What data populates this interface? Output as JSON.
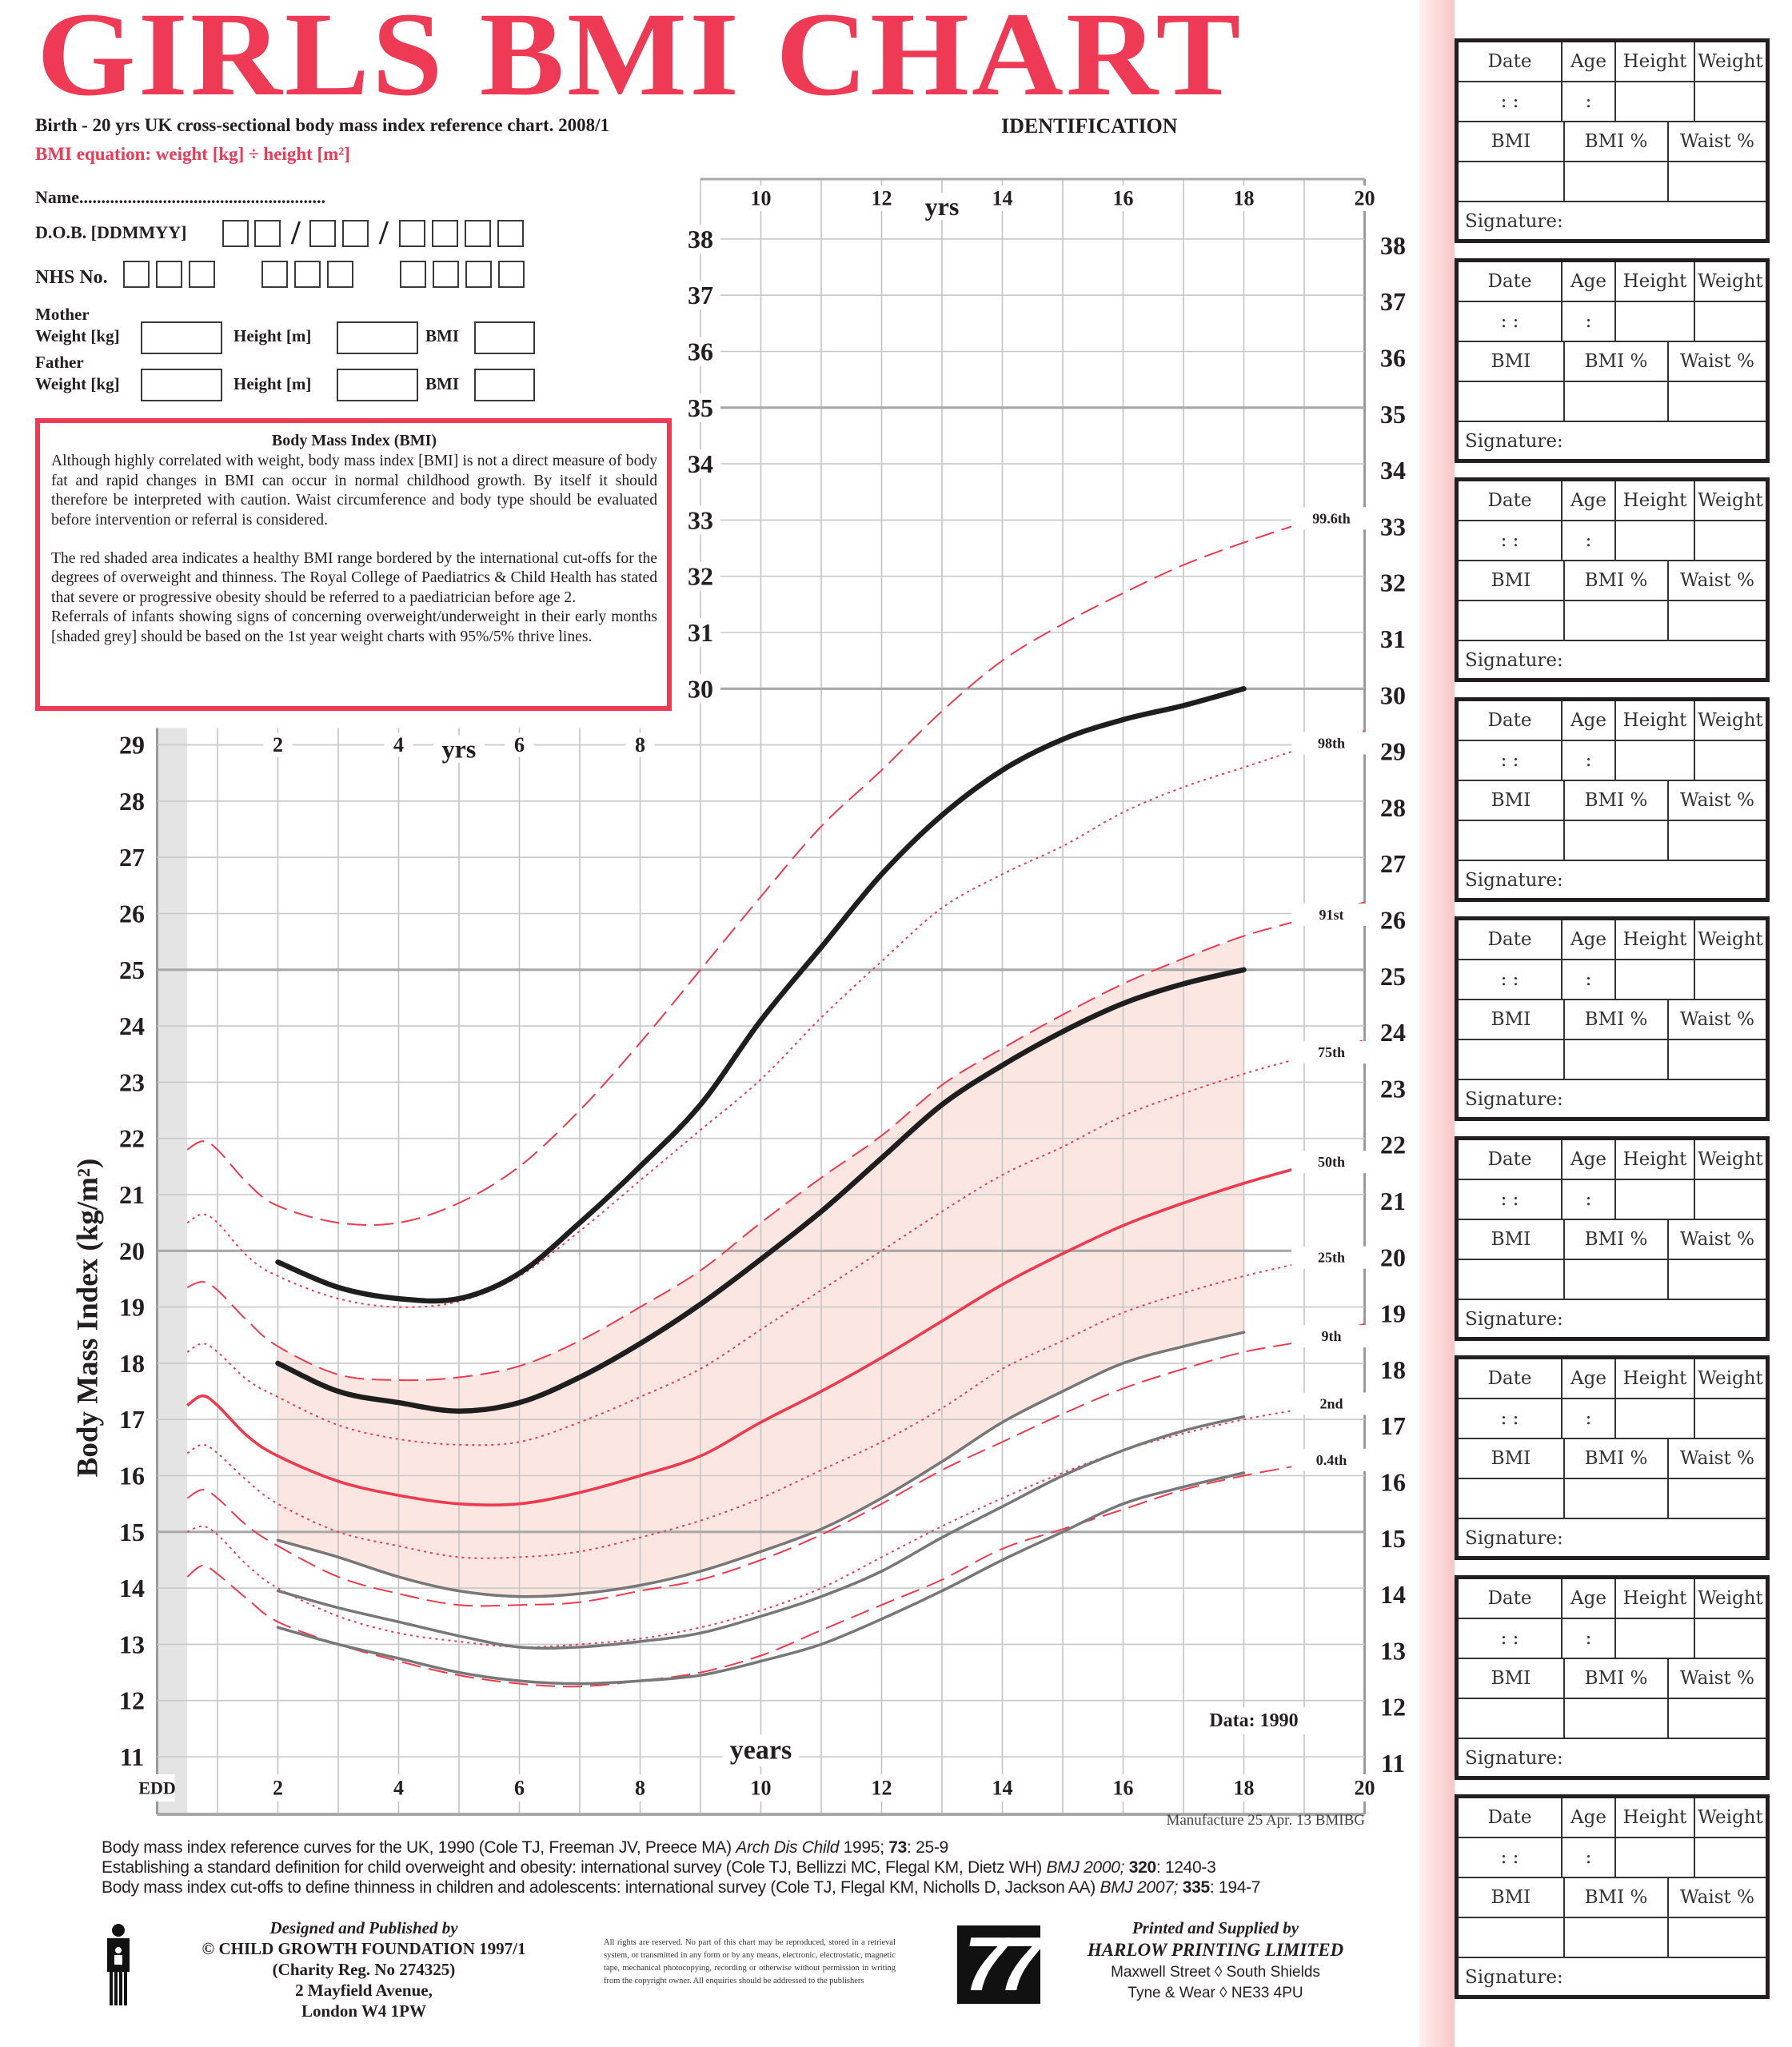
{
  "header": {
    "title": "GIRLS BMI CHART",
    "subtitle": "Birth - 20 yrs UK cross-sectional body mass index reference chart.  2008/1",
    "equation": "BMI equation: weight [kg] ÷ height [m²]",
    "identification": "IDENTIFICATION"
  },
  "form": {
    "name_label": "Name",
    "name_dots": "........................................................",
    "dob_label": "D.O.B. [DDMMYY]",
    "dob_separator": "/",
    "nhs_label": "NHS No.",
    "mother_label": "Mother",
    "father_label": "Father",
    "weight_label": "Weight [kg]",
    "height_label": "Height [m]",
    "bmi_label": "BMI"
  },
  "info_box": {
    "heading": "Body Mass Index (BMI)",
    "paragraph1": "Although highly correlated with weight, body mass index [BMI] is not a direct measure of body fat and rapid changes in BMI can occur in normal childhood growth. By itself it should therefore be interpreted with caution. Waist circumference and body type should be evaluated before intervention or referral is considered.",
    "paragraph2": "The red shaded area indicates a healthy BMI range bordered by the international cut-offs for the degrees of overweight and thinness. The Royal College of Paediatrics & Child Health has stated that severe or progressive obesity should be referred to a paediatrician before age 2.",
    "paragraph3": "Referrals of infants showing signs of concerning overweight/underweight in their early months [shaded grey] should be based on the 1st year weight charts with 95%/5% thrive lines."
  },
  "records": [
    {
      "date_label": "Date",
      "age_label": "Age",
      "height_label": "Height",
      "weight_label": "Weight",
      "date_mark": ":     :",
      "age_mark": ":",
      "bmi_label": "BMI",
      "bmi_pct_label": "BMI %",
      "waist_pct_label": "Waist %",
      "signature_label": "Signature:"
    },
    {
      "date_label": "Date",
      "age_label": "Age",
      "height_label": "Height",
      "weight_label": "Weight",
      "date_mark": ":     :",
      "age_mark": ":",
      "bmi_label": "BMI",
      "bmi_pct_label": "BMI %",
      "waist_pct_label": "Waist %",
      "signature_label": "Signature:"
    },
    {
      "date_label": "Date",
      "age_label": "Age",
      "height_label": "Height",
      "weight_label": "Weight",
      "date_mark": ":     :",
      "age_mark": ":",
      "bmi_label": "BMI",
      "bmi_pct_label": "BMI %",
      "waist_pct_label": "Waist %",
      "signature_label": "Signature:"
    },
    {
      "date_label": "Date",
      "age_label": "Age",
      "height_label": "Height",
      "weight_label": "Weight",
      "date_mark": ":     :",
      "age_mark": ":",
      "bmi_label": "BMI",
      "bmi_pct_label": "BMI %",
      "waist_pct_label": "Waist %",
      "signature_label": "Signature:"
    },
    {
      "date_label": "Date",
      "age_label": "Age",
      "height_label": "Height",
      "weight_label": "Weight",
      "date_mark": ":     :",
      "age_mark": ":",
      "bmi_label": "BMI",
      "bmi_pct_label": "BMI %",
      "waist_pct_label": "Waist %",
      "signature_label": "Signature:"
    },
    {
      "date_label": "Date",
      "age_label": "Age",
      "height_label": "Height",
      "weight_label": "Weight",
      "date_mark": ":     :",
      "age_mark": ":",
      "bmi_label": "BMI",
      "bmi_pct_label": "BMI %",
      "waist_pct_label": "Waist %",
      "signature_label": "Signature:"
    },
    {
      "date_label": "Date",
      "age_label": "Age",
      "height_label": "Height",
      "weight_label": "Weight",
      "date_mark": ":     :",
      "age_mark": ":",
      "bmi_label": "BMI",
      "bmi_pct_label": "BMI %",
      "waist_pct_label": "Waist %",
      "signature_label": "Signature:"
    },
    {
      "date_label": "Date",
      "age_label": "Age",
      "height_label": "Height",
      "weight_label": "Weight",
      "date_mark": ":     :",
      "age_mark": ":",
      "bmi_label": "BMI",
      "bmi_pct_label": "BMI %",
      "waist_pct_label": "Waist %",
      "signature_label": "Signature:"
    },
    {
      "date_label": "Date",
      "age_label": "Age",
      "height_label": "Height",
      "weight_label": "Weight",
      "date_mark": ":     :",
      "age_mark": ":",
      "bmi_label": "BMI",
      "bmi_pct_label": "BMI %",
      "waist_pct_label": "Waist %",
      "signature_label": "Signature:"
    }
  ],
  "chart_data": {
    "type": "line",
    "ylabel": "Body Mass Index (kg/m²)",
    "xlabel": "years",
    "x_unit_short": "yrs",
    "xlim": [
      0,
      20
    ],
    "ylim": [
      11,
      38
    ],
    "grid": true,
    "annotation": "Data: 1990",
    "x_ticks_bottom": [
      "EDD",
      "2",
      "4",
      "6",
      "8",
      "10",
      "12",
      "14",
      "16",
      "18",
      "20"
    ],
    "x_ticks_top": [
      "10",
      "12",
      "14",
      "16",
      "18",
      "20"
    ],
    "x_ticks_mid": [
      "2",
      "4",
      "6",
      "8"
    ],
    "y_ticks_left": [
      "11",
      "12",
      "13",
      "14",
      "15",
      "16",
      "17",
      "18",
      "19",
      "20",
      "21",
      "22",
      "23",
      "24",
      "25",
      "26",
      "27",
      "28",
      "29"
    ],
    "y_ticks_left_upper": [
      "30",
      "31",
      "32",
      "33",
      "34",
      "35",
      "36",
      "37",
      "38"
    ],
    "y_ticks_right": [
      "11",
      "12",
      "13",
      "14",
      "15",
      "16",
      "17",
      "18",
      "19",
      "20",
      "21",
      "22",
      "23",
      "24",
      "25",
      "26",
      "27",
      "28",
      "29",
      "30",
      "31",
      "32",
      "33",
      "34",
      "35",
      "36",
      "37",
      "38"
    ],
    "colors": {
      "centile": "#ee3a4f",
      "cutoff_upper": "#1e1e1e",
      "cutoff_lower": "#777777",
      "healthy_shade": "#fbe6e2",
      "infant_shade": "#e4e4e4",
      "title": "#ee3a55"
    },
    "x": [
      0.5,
      0.75,
      1,
      1.5,
      2,
      3,
      4,
      5,
      6,
      7,
      8,
      9,
      10,
      11,
      12,
      13,
      14,
      15,
      16,
      17,
      18,
      19,
      20
    ],
    "series": [
      {
        "name": "99.6th",
        "style": "dashed",
        "values": [
          21.8,
          21.95,
          21.8,
          21.2,
          20.8,
          20.5,
          20.5,
          20.85,
          21.5,
          22.5,
          23.7,
          25.0,
          26.3,
          27.55,
          28.55,
          29.6,
          30.5,
          31.15,
          31.7,
          32.2,
          32.6,
          32.95,
          33.2
        ]
      },
      {
        "name": "98th",
        "style": "dotted",
        "values": [
          20.5,
          20.65,
          20.5,
          19.9,
          19.55,
          19.15,
          19.0,
          19.1,
          19.55,
          20.35,
          21.25,
          22.15,
          23.05,
          24.15,
          25.15,
          26.1,
          26.7,
          27.2,
          27.8,
          28.25,
          28.6,
          28.95,
          29.25
        ]
      },
      {
        "name": "91st",
        "style": "dashed",
        "values": [
          19.35,
          19.45,
          19.3,
          18.75,
          18.3,
          17.8,
          17.7,
          17.75,
          17.95,
          18.4,
          19.0,
          19.65,
          20.5,
          21.3,
          22.05,
          22.95,
          23.6,
          24.2,
          24.75,
          25.2,
          25.6,
          25.9,
          26.2
        ]
      },
      {
        "name": "75th",
        "style": "dotted",
        "values": [
          18.2,
          18.35,
          18.2,
          17.7,
          17.4,
          16.9,
          16.65,
          16.55,
          16.6,
          16.95,
          17.4,
          17.9,
          18.6,
          19.3,
          20.0,
          20.7,
          21.35,
          21.85,
          22.4,
          22.8,
          23.15,
          23.45,
          23.75
        ]
      },
      {
        "name": "50th",
        "style": "solid",
        "values": [
          17.25,
          17.42,
          17.25,
          16.7,
          16.35,
          15.9,
          15.65,
          15.5,
          15.5,
          15.7,
          16.0,
          16.35,
          16.95,
          17.5,
          18.1,
          18.75,
          19.4,
          19.95,
          20.45,
          20.85,
          21.2,
          21.5,
          21.75
        ]
      },
      {
        "name": "25th",
        "style": "dotted",
        "values": [
          16.4,
          16.55,
          16.4,
          15.9,
          15.5,
          15.0,
          14.75,
          14.55,
          14.55,
          14.65,
          14.9,
          15.2,
          15.6,
          16.1,
          16.6,
          17.2,
          17.9,
          18.4,
          18.9,
          19.25,
          19.55,
          19.8,
          20.05
        ]
      },
      {
        "name": "9th",
        "style": "dashed",
        "values": [
          15.6,
          15.75,
          15.6,
          15.1,
          14.75,
          14.2,
          13.9,
          13.7,
          13.7,
          13.75,
          13.95,
          14.15,
          14.5,
          14.95,
          15.5,
          16.1,
          16.6,
          17.1,
          17.55,
          17.9,
          18.2,
          18.4,
          18.7
        ]
      },
      {
        "name": "2nd",
        "style": "dotted",
        "values": [
          15.0,
          15.1,
          14.95,
          14.4,
          14.0,
          13.5,
          13.2,
          13.05,
          12.95,
          13.0,
          13.1,
          13.3,
          13.6,
          14.0,
          14.55,
          15.1,
          15.6,
          16.05,
          16.45,
          16.75,
          17.0,
          17.2,
          17.45
        ]
      },
      {
        "name": "0.4th",
        "style": "dashed",
        "values": [
          14.2,
          14.4,
          14.25,
          13.8,
          13.4,
          13.0,
          12.7,
          12.45,
          12.3,
          12.25,
          12.35,
          12.5,
          12.8,
          13.25,
          13.7,
          14.15,
          14.7,
          15.05,
          15.4,
          15.75,
          16.0,
          16.2,
          16.4
        ]
      }
    ],
    "cutoffs_x": [
      2,
      3,
      4,
      5,
      6,
      7,
      8,
      9,
      10,
      11,
      12,
      13,
      14,
      15,
      16,
      17,
      18
    ],
    "cutoffs": [
      {
        "style": "solid-black",
        "values": [
          19.8,
          19.35,
          19.15,
          19.15,
          19.6,
          20.5,
          21.5,
          22.6,
          24.1,
          25.4,
          26.7,
          27.75,
          28.55,
          29.1,
          29.45,
          29.7,
          30.0
        ]
      },
      {
        "style": "solid-black",
        "values": [
          18.0,
          17.5,
          17.3,
          17.15,
          17.3,
          17.75,
          18.35,
          19.05,
          19.85,
          20.7,
          21.65,
          22.6,
          23.3,
          23.9,
          24.4,
          24.75,
          25.0
        ]
      },
      {
        "style": "solid-grey",
        "values": [
          14.85,
          14.55,
          14.2,
          13.95,
          13.85,
          13.9,
          14.05,
          14.3,
          14.65,
          15.05,
          15.6,
          16.25,
          16.95,
          17.5,
          18.0,
          18.3,
          18.55
        ]
      },
      {
        "style": "solid-grey",
        "values": [
          13.95,
          13.65,
          13.4,
          13.15,
          12.95,
          12.95,
          13.05,
          13.2,
          13.5,
          13.85,
          14.3,
          14.9,
          15.45,
          16.0,
          16.45,
          16.8,
          17.05
        ]
      },
      {
        "style": "solid-grey",
        "values": [
          13.3,
          13.0,
          12.75,
          12.5,
          12.35,
          12.3,
          12.35,
          12.45,
          12.7,
          13.0,
          13.45,
          13.95,
          14.5,
          15.0,
          15.5,
          15.8,
          16.05
        ]
      }
    ],
    "healthy_shade_between": [
      "91st",
      "cutoff 3"
    ]
  },
  "footer": {
    "manufacture": "Manufacture 25   Apr. 13     BMIBG",
    "references": [
      {
        "text": "Body mass index reference curves for the UK, 1990 (Cole TJ, Freeman JV, Preece MA) ",
        "journal": "Arch Dis Child",
        "year": " 1995; ",
        "volume": "73",
        "pages": ": 25-9"
      },
      {
        "text": "Establishing a standard definition for child overweight and obesity: international survey (Cole TJ, Bellizzi MC, Flegal KM, Dietz WH) ",
        "journal": "BMJ 2000;",
        "year": " ",
        "volume": "320",
        "pages": ": 1240-3"
      },
      {
        "text": "Body mass index cut-offs to define thinness in children and adolescents: international survey (Cole TJ, Flegal KM, Nicholls D, Jackson AA) ",
        "journal": "BMJ 2007;",
        "year": " ",
        "volume": "335",
        "pages": ": 194-7"
      }
    ],
    "publisher": {
      "heading": "Designed and Published by",
      "line1": "© CHILD GROWTH FOUNDATION 1997/1",
      "line2": "(Charity Reg. No 274325)",
      "line3": "2 Mayfield Avenue,",
      "line4": "London W4 1PW"
    },
    "rights": "All rights are reserved. No part of this chart may be reproduced, stored in a retrieval system, or transmitted in any form or by any means, electronic, electrostatic, magnetic tape, mechanical photocopying, recording or otherwise without permission in writing from the copyright owner. All enquiries should be addressed to the publishers",
    "printer": {
      "heading": "Printed and Supplied by",
      "name": "HARLOW PRINTING LIMITED",
      "address1": "Maxwell Street ◊ South Shields",
      "address2": "Tyne & Wear ◊ NE33 4PU",
      "logo_text": "77"
    }
  }
}
